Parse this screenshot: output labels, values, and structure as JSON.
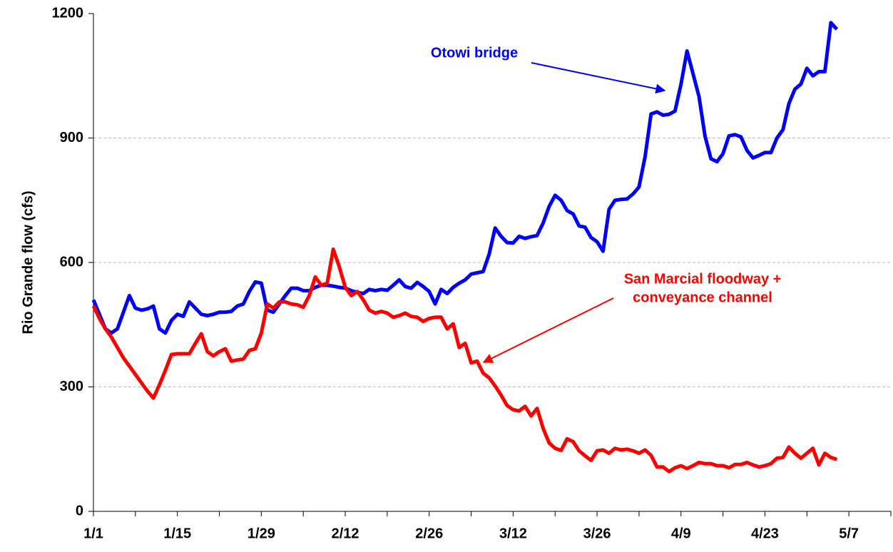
{
  "chart_data": {
    "type": "line",
    "y_label": "Rio Grande flow (cfs)",
    "x": [
      0,
      1,
      2,
      3,
      4,
      5,
      6,
      7,
      8,
      9,
      10,
      11,
      12,
      13,
      14,
      15,
      16,
      17,
      18,
      19,
      20,
      21,
      22,
      23,
      24,
      25,
      26,
      27,
      28,
      29,
      30,
      31,
      32,
      33,
      34,
      35,
      36,
      37,
      38,
      39,
      40,
      41,
      42,
      43,
      44,
      45,
      46,
      47,
      48,
      49,
      50,
      51,
      52,
      53,
      54,
      55,
      56,
      57,
      58,
      59,
      60,
      61,
      62,
      63,
      64,
      65,
      66,
      67,
      68,
      69,
      70,
      71,
      72,
      73,
      74,
      75,
      76,
      77,
      78,
      79,
      80,
      81,
      82,
      83,
      84,
      85,
      86,
      87,
      88,
      89,
      90,
      91,
      92,
      93,
      94,
      95,
      96,
      97,
      98,
      99,
      100,
      101,
      102,
      103,
      104,
      105,
      106,
      107,
      108,
      109,
      110,
      111,
      112,
      113,
      114,
      115,
      116,
      117,
      118,
      119,
      120,
      121,
      122,
      123,
      124
    ],
    "series": [
      {
        "name": "Otowi bridge",
        "color": "#0000ff",
        "values": [
          510,
          475,
          440,
          430,
          440,
          480,
          520,
          490,
          485,
          488,
          495,
          440,
          430,
          460,
          475,
          470,
          505,
          490,
          475,
          472,
          475,
          480,
          480,
          482,
          495,
          500,
          530,
          553,
          550,
          485,
          480,
          500,
          520,
          538,
          538,
          532,
          532,
          540,
          545,
          545,
          543,
          540,
          538,
          532,
          528,
          525,
          535,
          532,
          535,
          533,
          545,
          558,
          542,
          538,
          552,
          542,
          530,
          500,
          535,
          525,
          540,
          550,
          558,
          572,
          575,
          578,
          620,
          683,
          663,
          648,
          647,
          663,
          658,
          662,
          665,
          695,
          735,
          762,
          750,
          725,
          717,
          688,
          685,
          660,
          650,
          627,
          728,
          750,
          752,
          753,
          765,
          782,
          855,
          958,
          963,
          955,
          957,
          965,
          1030,
          1110,
          1055,
          1000,
          905,
          850,
          843,
          862,
          905,
          908,
          903,
          870,
          852,
          858,
          865,
          865,
          900,
          920,
          983,
          1018,
          1030,
          1068,
          1050,
          1060,
          1060,
          1178,
          1162
        ]
      },
      {
        "name": "San Marcial floodway + conveyance channel",
        "color": "#ff0000",
        "values": [
          495,
          465,
          440,
          420,
          395,
          370,
          350,
          330,
          310,
          290,
          273,
          305,
          340,
          378,
          380,
          380,
          380,
          405,
          428,
          385,
          375,
          385,
          392,
          362,
          365,
          367,
          388,
          392,
          430,
          500,
          490,
          505,
          505,
          500,
          498,
          492,
          520,
          565,
          545,
          550,
          632,
          590,
          540,
          520,
          530,
          510,
          485,
          478,
          482,
          478,
          468,
          472,
          478,
          470,
          468,
          458,
          465,
          468,
          468,
          440,
          452,
          395,
          405,
          358,
          362,
          333,
          322,
          302,
          280,
          255,
          245,
          242,
          253,
          230,
          248,
          200,
          165,
          152,
          147,
          175,
          168,
          146,
          134,
          123,
          146,
          148,
          140,
          152,
          148,
          150,
          146,
          140,
          148,
          135,
          107,
          107,
          96,
          105,
          110,
          103,
          110,
          118,
          115,
          115,
          110,
          110,
          105,
          113,
          113,
          118,
          112,
          107,
          110,
          115,
          128,
          130,
          155,
          140,
          128,
          140,
          152,
          112,
          140,
          130,
          125
        ]
      }
    ],
    "annotations": [
      {
        "lines": [
          "Otowi bridge"
        ],
        "color": "#0000ff"
      },
      {
        "lines": [
          "San Marcial floodway +",
          "conveyance channel"
        ],
        "color": "#ff0000"
      }
    ],
    "xlim": [
      0,
      133
    ],
    "xticks": [
      {
        "value": 0,
        "label": "1/1"
      },
      {
        "value": 14,
        "label": "1/15"
      },
      {
        "value": 28,
        "label": "1/29"
      },
      {
        "value": 42,
        "label": "2/12"
      },
      {
        "value": 56,
        "label": "2/26"
      },
      {
        "value": 70,
        "label": "3/12"
      },
      {
        "value": 84,
        "label": "3/26"
      },
      {
        "value": 98,
        "label": "4/9"
      },
      {
        "value": 112,
        "label": "4/23"
      },
      {
        "value": 126,
        "label": "5/7"
      }
    ],
    "xminorticks": [
      7,
      21,
      35,
      49,
      63,
      77,
      91,
      105,
      119,
      133
    ],
    "ylim": [
      0,
      1200
    ],
    "yticks": [
      0,
      300,
      600,
      900,
      1200
    ],
    "grid": true
  }
}
